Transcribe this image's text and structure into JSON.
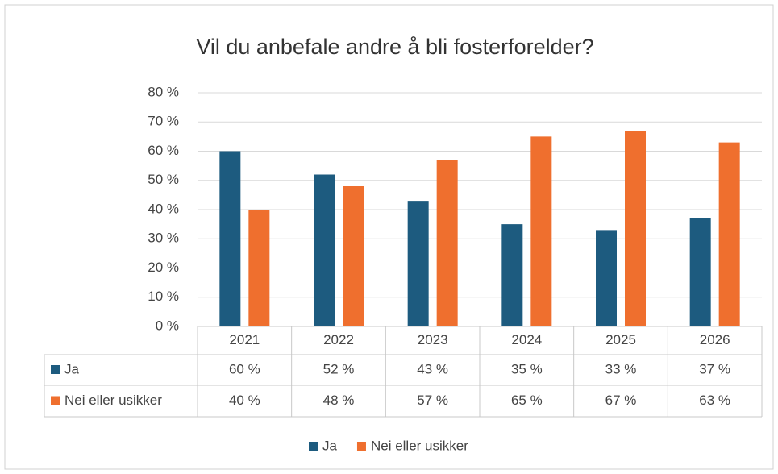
{
  "chart_data": {
    "type": "bar",
    "title": "Vil du anbefale andre å bli fosterforelder?",
    "categories": [
      "2021",
      "2022",
      "2023",
      "2024",
      "2025",
      "2026"
    ],
    "series": [
      {
        "name": "Ja",
        "color": "#1d5b7f",
        "values": [
          60,
          52,
          43,
          35,
          33,
          37
        ],
        "value_labels": [
          "60 %",
          "52 %",
          "43 %",
          "35 %",
          "33 %",
          "37 %"
        ]
      },
      {
        "name": "Nei eller usikker",
        "color": "#ef6f2e",
        "values": [
          40,
          48,
          57,
          65,
          67,
          63
        ],
        "value_labels": [
          "40 %",
          "48 %",
          "57 %",
          "65 %",
          "67 %",
          "63 %"
        ]
      }
    ],
    "ylim": [
      0,
      80
    ],
    "yticks": [
      {
        "value": 0,
        "label": "0 %"
      },
      {
        "value": 10,
        "label": "10 %"
      },
      {
        "value": 20,
        "label": "20 %"
      },
      {
        "value": 30,
        "label": "30 %"
      },
      {
        "value": 40,
        "label": "40 %"
      },
      {
        "value": 50,
        "label": "50 %"
      },
      {
        "value": 60,
        "label": "60 %"
      },
      {
        "value": 70,
        "label": "70 %"
      },
      {
        "value": 80,
        "label": "80 %"
      }
    ],
    "grid": true,
    "legend": "bottom"
  }
}
